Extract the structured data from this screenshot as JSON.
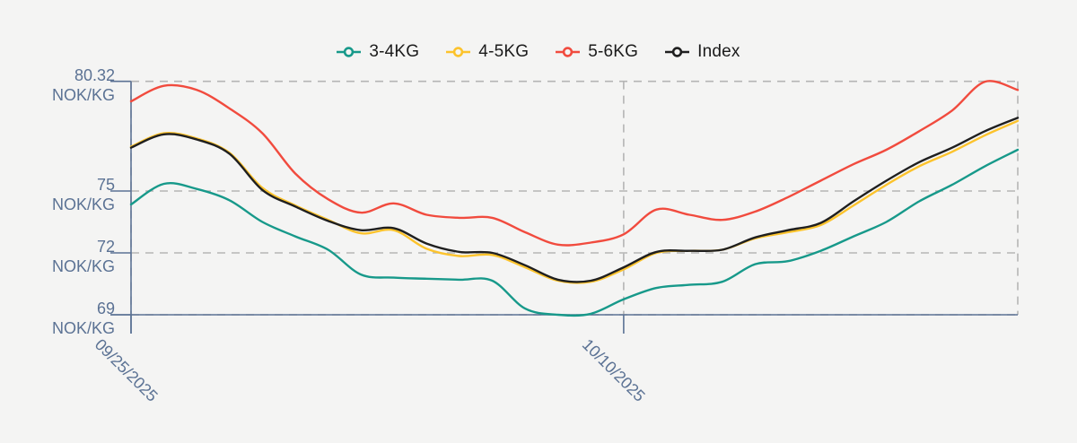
{
  "legend": {
    "items": [
      {
        "label": "3-4KG",
        "color": "#17998a"
      },
      {
        "label": "4-5KG",
        "color": "#fcc32c"
      },
      {
        "label": "5-6KG",
        "color": "#f14b3e"
      },
      {
        "label": "Index",
        "color": "#1f1f1f"
      }
    ]
  },
  "chart_data": {
    "type": "line",
    "title": "",
    "unit": "NOK/KG",
    "grid": "dashed",
    "legend_position": "top-center",
    "n_points": 28,
    "x_axis": {
      "ticks": [
        {
          "index": 0,
          "label": "09/25/2025"
        },
        {
          "index": 15,
          "label": "10/10/2025"
        }
      ],
      "gridline_indices": [
        0,
        15,
        27
      ],
      "note": "daily points from 09/25/2025 to approx 10/22/2025"
    },
    "y_axis": {
      "ticks": [
        {
          "value": 80.32,
          "label": "80.32",
          "unit": "NOK/KG"
        },
        {
          "value": 75,
          "label": "75",
          "unit": "NOK/KG"
        },
        {
          "value": 72,
          "label": "72",
          "unit": "NOK/KG"
        },
        {
          "value": 69,
          "label": "69",
          "unit": "NOK/KG"
        }
      ],
      "ylim": [
        69,
        80.32
      ]
    },
    "series": [
      {
        "name": "3-4KG",
        "color": "#17998a",
        "values": [
          74.35,
          75.35,
          75.1,
          74.55,
          73.5,
          72.8,
          72.15,
          70.95,
          70.8,
          70.75,
          70.7,
          70.65,
          69.3,
          69.0,
          69.05,
          69.75,
          70.3,
          70.45,
          70.6,
          71.45,
          71.6,
          72.1,
          72.8,
          73.5,
          74.5,
          75.3,
          76.2,
          77.0
        ]
      },
      {
        "name": "4-5KG",
        "color": "#fcc32c",
        "values": [
          77.15,
          77.8,
          77.55,
          76.85,
          75.15,
          74.3,
          73.6,
          72.95,
          73.1,
          72.2,
          71.85,
          71.9,
          71.3,
          70.65,
          70.6,
          71.2,
          72.0,
          72.1,
          72.15,
          72.7,
          73.0,
          73.35,
          74.3,
          75.3,
          76.2,
          76.9,
          77.7,
          78.4
        ]
      },
      {
        "name": "5-6KG",
        "color": "#f14b3e",
        "values": [
          79.35,
          80.1,
          79.9,
          79.0,
          77.8,
          75.85,
          74.6,
          73.95,
          74.4,
          73.85,
          73.7,
          73.7,
          73.0,
          72.4,
          72.5,
          72.9,
          74.1,
          73.85,
          73.6,
          74.0,
          74.7,
          75.5,
          76.3,
          77.0,
          77.9,
          78.9,
          80.3,
          79.9
        ]
      },
      {
        "name": "Index",
        "color": "#1f1f1f",
        "values": [
          77.1,
          77.75,
          77.5,
          76.8,
          75.05,
          74.25,
          73.55,
          73.1,
          73.2,
          72.45,
          72.05,
          72.0,
          71.4,
          70.7,
          70.65,
          71.3,
          72.05,
          72.1,
          72.15,
          72.75,
          73.1,
          73.45,
          74.5,
          75.5,
          76.4,
          77.1,
          77.9,
          78.55
        ]
      }
    ],
    "colors": {
      "axis": "#5b7294",
      "gridline": "#b5b5b5",
      "background": "#f4f4f3",
      "legend_text": "#1b1b1b"
    }
  }
}
